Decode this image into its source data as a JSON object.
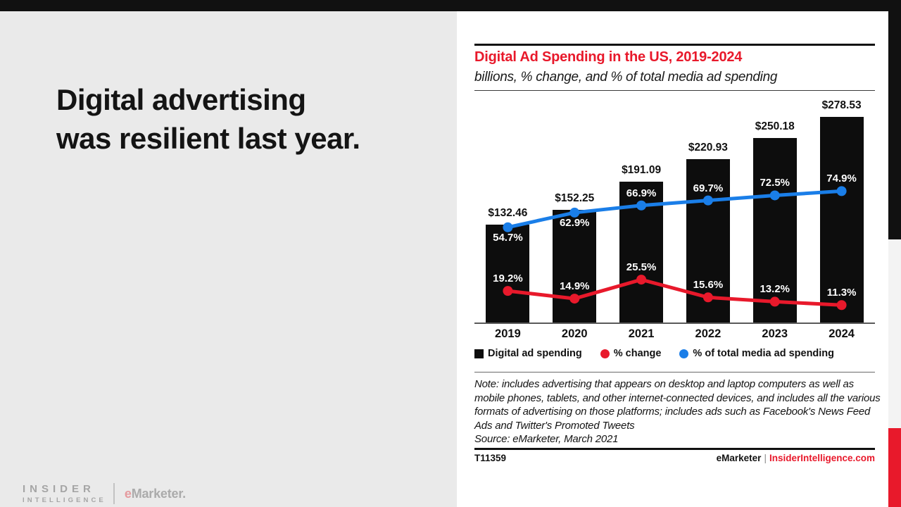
{
  "slide": {
    "headline_lines": [
      "Digital advertising",
      "was resilient last year."
    ],
    "brand": {
      "insider": "INSIDER",
      "intelligence": "INTELLIGENCE",
      "emarketer_e": "e",
      "emarketer_rest": "Marketer."
    }
  },
  "chart": {
    "note": "Note: includes advertising that appears on desktop and laptop computers as well as mobile phones, tablets, and other internet-connected devices, and includes all the various formats of advertising on those platforms; includes ads such as Facebook's News Feed Ads and Twitter's Promoted Tweets",
    "source": "Source: eMarketer, March 2021",
    "footer_left": "T11359",
    "footer_brand": "eMarketer",
    "footer_separator": "|",
    "footer_site": "InsiderIntelligence.com",
    "colors": {
      "accent_red": "#e8192b",
      "line_blue": "#1a7ee8",
      "bar_black": "#0d0d0d"
    }
  },
  "chart_data": {
    "type": "combo-bar-line",
    "title": "Digital Ad Spending in the US, 2019-2024",
    "subtitle": "billions, % change, and % of total media ad spending",
    "categories": [
      "2019",
      "2020",
      "2021",
      "2022",
      "2023",
      "2024"
    ],
    "series": [
      {
        "name": "Digital ad spending",
        "type": "bar",
        "unit": "billions of USD",
        "color": "#0d0d0d",
        "values": [
          132.46,
          152.25,
          191.09,
          220.93,
          250.18,
          278.53
        ],
        "labels": [
          "$132.46",
          "$152.25",
          "$191.09",
          "$220.93",
          "$250.18",
          "$278.53"
        ]
      },
      {
        "name": "% change",
        "type": "line",
        "unit": "%",
        "color": "#e8192b",
        "values": [
          19.2,
          14.9,
          25.5,
          15.6,
          13.2,
          11.3
        ],
        "labels": [
          "19.2%",
          "14.9%",
          "25.5%",
          "15.6%",
          "13.2%",
          "11.3%"
        ],
        "label_positions": [
          "above",
          "above",
          "above",
          "above",
          "above",
          "above"
        ]
      },
      {
        "name": "% of total media ad spending",
        "type": "line",
        "unit": "%",
        "color": "#1a7ee8",
        "values": [
          54.7,
          62.9,
          66.9,
          69.7,
          72.5,
          74.9
        ],
        "labels": [
          "54.7%",
          "62.9%",
          "66.9%",
          "69.7%",
          "72.5%",
          "74.9%"
        ],
        "label_positions": [
          "below",
          "below",
          "above",
          "above",
          "above",
          "above"
        ]
      }
    ],
    "legend_position": "bottom",
    "grid": false,
    "axes": {
      "x_visible": true,
      "y_visible": false,
      "bar_axis_range_est": [
        0,
        300
      ],
      "pct_axis_range_est": [
        0,
        110
      ]
    }
  }
}
